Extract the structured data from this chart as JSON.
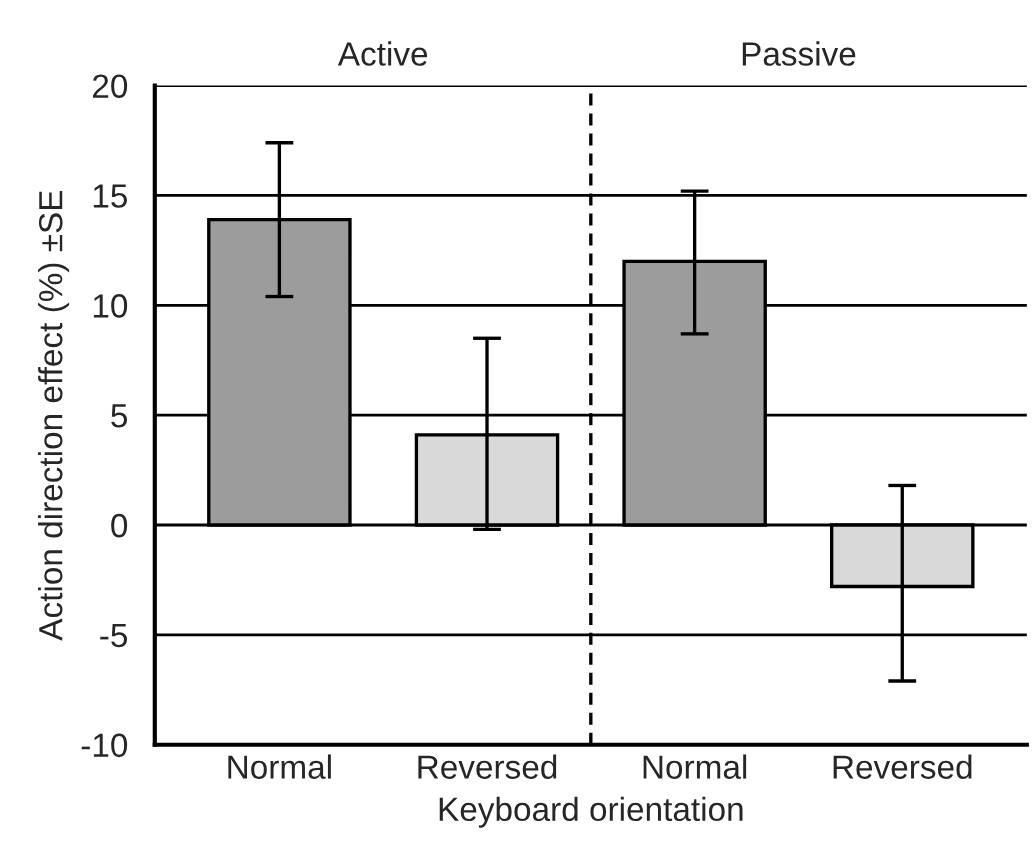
{
  "chart_data": {
    "type": "bar",
    "categories": [
      "Normal",
      "Reversed",
      "Normal",
      "Reversed"
    ],
    "values": [
      13.9,
      4.1,
      12.0,
      -2.8
    ],
    "errors": [
      [
        10.4,
        17.4
      ],
      [
        -0.2,
        8.5
      ],
      [
        8.7,
        15.2
      ],
      [
        -7.1,
        1.8
      ]
    ],
    "colors": [
      "#9c9c9c",
      "#d9d9d9",
      "#9c9c9c",
      "#d9d9d9"
    ],
    "xlabel": "Keyboard orientation",
    "ylabel": "Action direction effect (%) ±SE",
    "ylim": [
      -10,
      20
    ],
    "yticks": [
      -10,
      -5,
      0,
      5,
      10,
      15,
      20
    ],
    "grid": "y",
    "annotations": [
      "Active",
      "Passive"
    ]
  }
}
